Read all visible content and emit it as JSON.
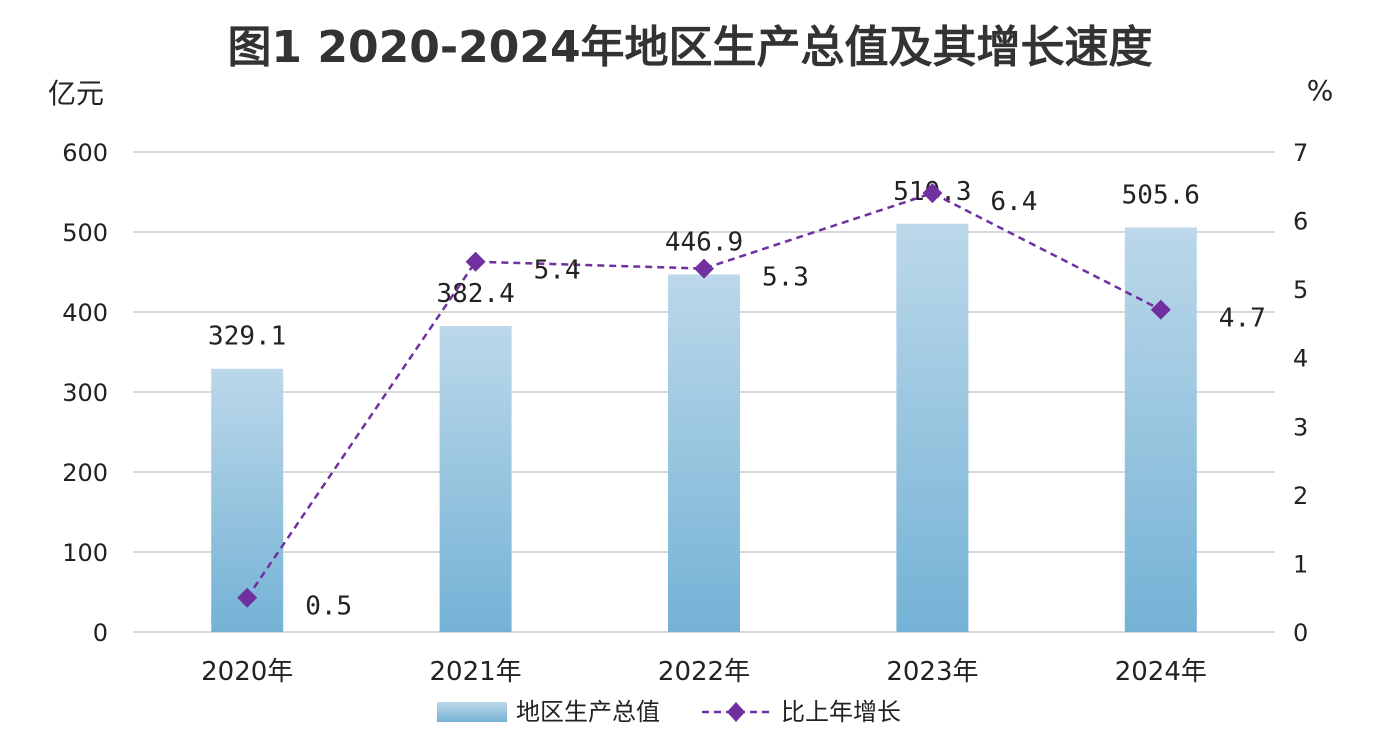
{
  "chart_data": {
    "type": "bar",
    "title": "图1  2020-2024年地区生产总值及其增长速度",
    "y_left_unit": "亿元",
    "y_right_unit": "%",
    "categories": [
      "2020年",
      "2021年",
      "2022年",
      "2023年",
      "2024年"
    ],
    "ylim_left": [
      0,
      600
    ],
    "yticks_left": [
      0,
      100,
      200,
      300,
      400,
      500,
      600
    ],
    "ylim_right": [
      0,
      7
    ],
    "yticks_right": [
      0,
      1,
      2,
      3,
      4,
      5,
      6,
      7
    ],
    "grid": true,
    "legend_position": "bottom",
    "series": [
      {
        "name": "地区生产总值",
        "type": "bar",
        "axis": "left",
        "values": [
          329.1,
          382.4,
          446.9,
          510.3,
          505.6
        ],
        "labels": [
          "329.1",
          "382.4",
          "446.9",
          "510.3",
          "505.6"
        ],
        "color_top": "#bcd8ea",
        "color_bottom": "#74b2d5"
      },
      {
        "name": "比上年增长",
        "type": "line",
        "axis": "right",
        "values": [
          0.5,
          5.4,
          5.3,
          6.4,
          4.7
        ],
        "labels": [
          "0.5",
          "5.4",
          "5.3",
          "6.4",
          "4.7"
        ],
        "color": "#7030a0",
        "line_style": "dashed",
        "marker": "diamond"
      }
    ]
  }
}
